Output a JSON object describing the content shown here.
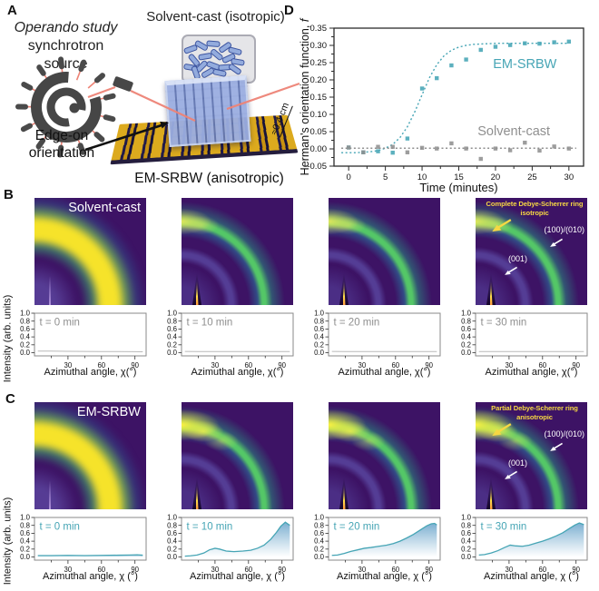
{
  "colors": {
    "teal": "#46a5b5",
    "gray": "#8f8f8f",
    "dark": "#2b2b2b",
    "annotation_yellow": "#f6d843",
    "tile_background": "#3d1365",
    "ring_green": "#54c767",
    "ring_yellow": "#f6e32a",
    "mini_fill_top": "#74abce",
    "mini_line_gray": "#b9b9b9",
    "gold": "#dcaa1e",
    "crystal_blue": "#93abdd",
    "beam_red": "#ee8376"
  },
  "panelA": {
    "label": "A",
    "title_line1": "Operando study",
    "title_line2": "synchrotron source",
    "vial_label": "Solvent-cast (isotropic)",
    "edge_line1": "Edge-on",
    "edge_line2": "orientation",
    "device_label": "EM-SRBW (anisotropic)",
    "scale_label": "≈0.4 cm"
  },
  "panelD": {
    "label": "D"
  },
  "panelB": {
    "label": "B",
    "row_title": "Solvent-cast",
    "ylabel": "Intensity (arb. units)",
    "xlabel": "Azimuthal angle, χ(°)",
    "hotspot": "mild",
    "time_color_key": "gray",
    "tiles": [
      {
        "time_label": "t = 0 min",
        "pattern": "broad"
      },
      {
        "time_label": "t = 10 min",
        "pattern": "sharp"
      },
      {
        "time_label": "t = 20 min",
        "pattern": "sharp"
      },
      {
        "time_label": "t = 30 min",
        "pattern": "sharp"
      }
    ],
    "annotations": {
      "ring_line1": "Complete Debye-Scherrer ring",
      "ring_line2": "isotropic",
      "peak1": "(100)/(010)",
      "peak2": "(001)"
    }
  },
  "panelC": {
    "label": "C",
    "row_title": "EM-SRBW",
    "ylabel": "Intensity (arb. units)",
    "xlabel": "Azimuthal angle, χ (°)",
    "hotspot": "strong",
    "time_color_key": "teal",
    "tiles": [
      {
        "time_label": "t = 0 min",
        "pattern": "broad"
      },
      {
        "time_label": "t = 10 min",
        "pattern": "sharp"
      },
      {
        "time_label": "t = 20 min",
        "pattern": "sharp"
      },
      {
        "time_label": "t = 30 min",
        "pattern": "sharp"
      }
    ],
    "annotations": {
      "ring_line1": "Partial Debye-Scherrer ring",
      "ring_line2": "anisotropic",
      "peak1": "(100)/(010)",
      "peak2": "(001)"
    }
  },
  "chart_data": {
    "herman": {
      "type": "scatter",
      "xlabel": "Time (minutes)",
      "ylabel_prefix": "Herman's orientation function, ",
      "ylabel_italic": "f",
      "xlim": [
        -2,
        32
      ],
      "ylim": [
        -0.05,
        0.35
      ],
      "xticks": [
        0,
        5,
        10,
        15,
        20,
        25,
        30
      ],
      "yticks": [
        -0.05,
        0.0,
        0.05,
        0.1,
        0.15,
        0.2,
        0.25,
        0.3,
        0.35
      ],
      "grid": false,
      "legend_position": "inline",
      "series": [
        {
          "name": "EM-SRBW",
          "color_key": "teal",
          "x": [
            0,
            2,
            4,
            6,
            8,
            10,
            12,
            14,
            16,
            18,
            20,
            22,
            24,
            26,
            28,
            30
          ],
          "y": [
            0.004,
            -0.01,
            -0.007,
            -0.011,
            0.03,
            0.175,
            0.205,
            0.242,
            0.259,
            0.287,
            0.296,
            0.301,
            0.306,
            0.305,
            0.309,
            0.311
          ],
          "fit_x": [
            -1,
            0,
            1,
            2,
            3,
            4,
            5,
            6,
            7,
            8,
            9,
            10,
            11,
            12,
            13,
            14,
            15,
            16,
            17,
            18,
            19,
            20,
            21,
            22,
            23,
            24,
            25,
            26,
            27,
            28,
            29,
            30
          ],
          "fit_y": [
            -0.011,
            -0.011,
            -0.011,
            -0.01,
            -0.008,
            -0.005,
            0.002,
            0.013,
            0.033,
            0.064,
            0.107,
            0.157,
            0.206,
            0.244,
            0.27,
            0.286,
            0.295,
            0.3,
            0.303,
            0.304,
            0.305,
            0.306,
            0.306,
            0.306,
            0.306,
            0.306,
            0.306,
            0.306,
            0.306,
            0.306,
            0.306,
            0.306
          ],
          "label_pos": [
            24,
            0.247
          ]
        },
        {
          "name": "Solvent-cast",
          "color_key": "gray",
          "x": [
            0,
            2,
            4,
            6,
            8,
            10,
            12,
            14,
            16,
            18,
            20,
            22,
            24,
            26,
            28,
            30
          ],
          "y": [
            0.004,
            -0.01,
            0.006,
            0.006,
            -0.01,
            0.003,
            0.001,
            0.016,
            0.001,
            -0.029,
            0.001,
            -0.004,
            0.018,
            -0.005,
            0.007,
            0.001
          ],
          "fit_x": [
            -1,
            31
          ],
          "fit_y": [
            0.002,
            0.002
          ],
          "label_pos": [
            22.5,
            0.052
          ]
        }
      ]
    },
    "azimuthal": {
      "type": "line",
      "ylim": [
        -0.08,
        1.0
      ],
      "yticks": [
        0.0,
        0.2,
        0.4,
        0.6,
        0.8,
        1.0
      ],
      "xticks": [
        30,
        60,
        90
      ],
      "xminor": [
        15,
        45,
        75
      ],
      "rows": [
        {
          "panel": "B",
          "series": [
            {
              "label": "t = 0 min",
              "x": [
                3,
                15,
                30,
                45,
                60,
                75,
                90,
                97
              ],
              "y": [
                0.042,
                0.04,
                0.036,
                0.033,
                0.03,
                0.028,
                0.025,
                0.024
              ]
            },
            {
              "label": "t = 10 min",
              "x": [
                3,
                15,
                30,
                45,
                60,
                75,
                90,
                97
              ],
              "y": [
                0.032,
                0.03,
                0.03,
                0.03,
                0.03,
                0.03,
                0.03,
                0.03
              ]
            },
            {
              "label": "t = 20 min",
              "x": [
                3,
                15,
                30,
                45,
                60,
                75,
                90,
                97
              ],
              "y": [
                0.032,
                0.03,
                0.03,
                0.028,
                0.028,
                0.028,
                0.028,
                0.028
              ]
            },
            {
              "label": "t = 30 min",
              "x": [
                3,
                15,
                30,
                45,
                60,
                75,
                90,
                97
              ],
              "y": [
                0.03,
                0.03,
                0.028,
                0.028,
                0.028,
                0.028,
                0.03,
                0.03
              ]
            }
          ]
        },
        {
          "panel": "C",
          "series": [
            {
              "label": "t = 0 min",
              "x": [
                3,
                15,
                30,
                45,
                60,
                75,
                85,
                92,
                97
              ],
              "y": [
                0.035,
                0.035,
                0.04,
                0.035,
                0.04,
                0.045,
                0.05,
                0.055,
                0.045
              ]
            },
            {
              "label": "t = 10 min",
              "x": [
                3,
                8,
                14,
                20,
                25,
                30,
                34,
                40,
                47,
                55,
                62,
                68,
                74,
                80,
                85,
                89,
                93,
                97
              ],
              "y": [
                0.02,
                0.03,
                0.05,
                0.1,
                0.18,
                0.22,
                0.2,
                0.15,
                0.135,
                0.15,
                0.17,
                0.22,
                0.3,
                0.45,
                0.62,
                0.78,
                0.88,
                0.8
              ]
            },
            {
              "label": "t = 20 min",
              "x": [
                3,
                8,
                14,
                20,
                26,
                32,
                38,
                45,
                52,
                58,
                64,
                70,
                76,
                82,
                88,
                92,
                95,
                97
              ],
              "y": [
                0.04,
                0.05,
                0.09,
                0.14,
                0.18,
                0.22,
                0.24,
                0.27,
                0.3,
                0.34,
                0.4,
                0.48,
                0.57,
                0.68,
                0.79,
                0.84,
                0.85,
                0.81
              ]
            },
            {
              "label": "t = 30 min",
              "x": [
                3,
                8,
                14,
                20,
                26,
                31,
                36,
                42,
                48,
                54,
                60,
                66,
                72,
                78,
                84,
                89,
                93,
                97
              ],
              "y": [
                0.05,
                0.06,
                0.1,
                0.16,
                0.24,
                0.3,
                0.28,
                0.27,
                0.3,
                0.35,
                0.4,
                0.46,
                0.53,
                0.61,
                0.72,
                0.81,
                0.86,
                0.82
              ]
            }
          ]
        }
      ]
    }
  }
}
